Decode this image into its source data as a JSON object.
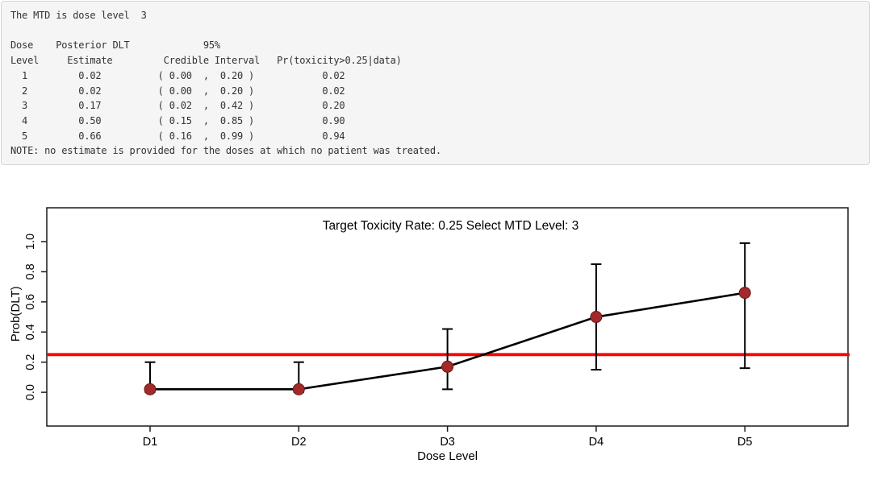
{
  "console": {
    "mtd_message": "The MTD is dose level  3",
    "note": "NOTE: no estimate is provided for the doses at which no patient was treated.",
    "lines": [
      "The MTD is dose level  3",
      "",
      "Dose    Posterior DLT             95%",
      "Level     Estimate         Credible Interval   Pr(toxicity>0.25|data)",
      "  1         0.02          ( 0.00  ,  0.20 )            0.02",
      "  2         0.02          ( 0.00  ,  0.20 )            0.02",
      "  3         0.17          ( 0.02  ,  0.42 )            0.20",
      "  4         0.50          ( 0.15  ,  0.85 )            0.90",
      "  5         0.66          ( 0.16  ,  0.99 )            0.94",
      "NOTE: no estimate is provided for the doses at which no patient was treated."
    ],
    "table": {
      "header_row1": [
        "Dose",
        "Posterior DLT",
        "95%"
      ],
      "header_row2": [
        "Level",
        "Estimate",
        "Credible Interval",
        "Pr(toxicity>0.25|data)"
      ],
      "rows": [
        {
          "dose_level": "1",
          "posterior_dlt_estimate": "0.02",
          "ci_low": "0.00",
          "ci_high": "0.20",
          "pr_toxicity_gt_target": "0.02"
        },
        {
          "dose_level": "2",
          "posterior_dlt_estimate": "0.02",
          "ci_low": "0.00",
          "ci_high": "0.20",
          "pr_toxicity_gt_target": "0.02"
        },
        {
          "dose_level": "3",
          "posterior_dlt_estimate": "0.17",
          "ci_low": "0.02",
          "ci_high": "0.42",
          "pr_toxicity_gt_target": "0.20"
        },
        {
          "dose_level": "4",
          "posterior_dlt_estimate": "0.50",
          "ci_low": "0.15",
          "ci_high": "0.85",
          "pr_toxicity_gt_target": "0.90"
        },
        {
          "dose_level": "5",
          "posterior_dlt_estimate": "0.66",
          "ci_low": "0.16",
          "ci_high": "0.99",
          "pr_toxicity_gt_target": "0.94"
        }
      ]
    },
    "colors": {
      "panel_bg": "#f5f5f5",
      "panel_border": "#d5d5d5",
      "text": "#333333"
    }
  },
  "chart_data": {
    "type": "line",
    "title": "Target Toxicity Rate:  0.25    Select MTD Level: 3",
    "xlabel": "Dose Level",
    "ylabel": "Prob(DLT)",
    "categories": [
      "D1",
      "D2",
      "D3",
      "D4",
      "D5"
    ],
    "series": [
      {
        "name": "Posterior DLT estimate",
        "values": [
          0.02,
          0.02,
          0.17,
          0.5,
          0.66
        ]
      }
    ],
    "error_bars": {
      "low": [
        0.0,
        0.0,
        0.02,
        0.15,
        0.16
      ],
      "high": [
        0.2,
        0.2,
        0.42,
        0.85,
        0.99
      ]
    },
    "target_toxicity_rate": 0.25,
    "selected_mtd_level": 3,
    "yticks": [
      0.0,
      0.2,
      0.4,
      0.6,
      0.8,
      1.0
    ],
    "ylim": [
      -0.22,
      1.22
    ],
    "grid": false,
    "legend": "none",
    "colors": {
      "target_line": "#ff0000",
      "series_line": "#000000",
      "error_bar": "#000000",
      "point_fill": "#a32a2a",
      "point_stroke": "#6e1616",
      "axis": "#1a1a1a"
    }
  }
}
